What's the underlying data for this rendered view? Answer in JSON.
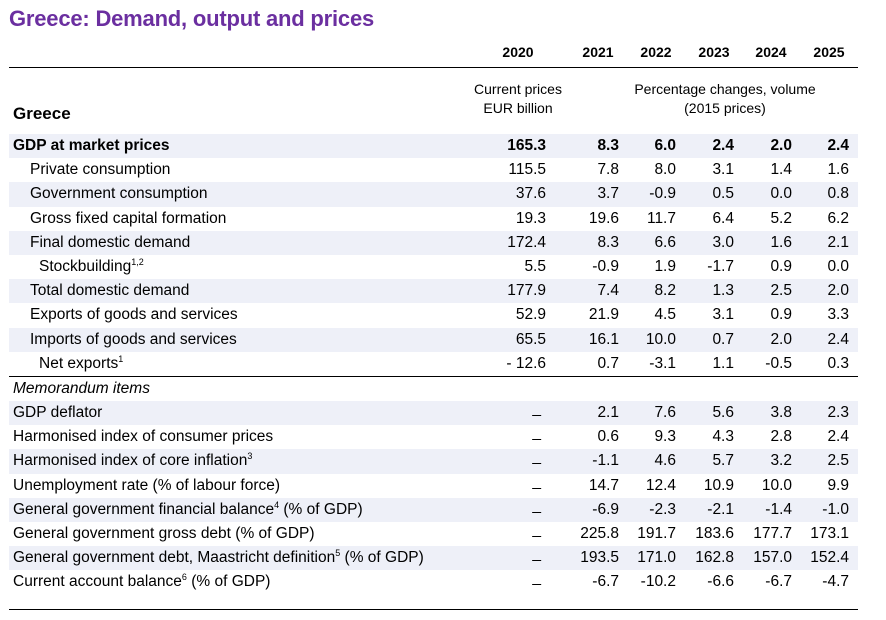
{
  "title": "Greece: Demand, output and prices",
  "header": {
    "years": [
      "2020",
      "2021",
      "2022",
      "2023",
      "2024",
      "2025"
    ],
    "col0_sub_line1": "Current prices",
    "col0_sub_line2": "EUR billion",
    "rest_sub_line1": "Percentage changes, volume",
    "rest_sub_line2": "(2015 prices)",
    "country": "Greece"
  },
  "rows": [
    {
      "label": "GDP at market prices",
      "values": [
        "165.3",
        "8.3",
        "6.0",
        "2.4",
        "2.0",
        "2.4"
      ]
    },
    {
      "label": "Private consumption",
      "values": [
        "115.5",
        "7.8",
        "8.0",
        "3.1",
        "1.4",
        "1.6"
      ]
    },
    {
      "label": "Government consumption",
      "values": [
        "37.6",
        "3.7",
        "-0.9",
        "0.5",
        "0.0",
        "0.8"
      ]
    },
    {
      "label": "Gross fixed capital formation",
      "values": [
        "19.3",
        "19.6",
        "11.7",
        "6.4",
        "5.2",
        "6.2"
      ]
    },
    {
      "label": "Final domestic demand",
      "values": [
        "172.4",
        "8.3",
        "6.6",
        "3.0",
        "1.6",
        "2.1"
      ]
    },
    {
      "label": "Stockbuilding",
      "sup": "1,2",
      "values": [
        "5.5",
        "-0.9",
        "1.9",
        "-1.7",
        "0.9",
        "0.0"
      ]
    },
    {
      "label": "Total domestic demand",
      "values": [
        "177.9",
        "7.4",
        "8.2",
        "1.3",
        "2.5",
        "2.0"
      ]
    },
    {
      "label": "Exports of goods and services",
      "values": [
        "52.9",
        "21.9",
        "4.5",
        "3.1",
        "0.9",
        "3.3"
      ]
    },
    {
      "label": "Imports of goods and services",
      "values": [
        "65.5",
        "16.1",
        "10.0",
        "0.7",
        "2.0",
        "2.4"
      ]
    },
    {
      "label": "Net exports",
      "sup": "1",
      "values": [
        "- 12.6",
        "0.7",
        "-3.1",
        "1.1",
        "-0.5",
        "0.3"
      ]
    },
    {
      "label": "Memorandum items"
    },
    {
      "label": "GDP deflator",
      "dash": "_",
      "values": [
        "",
        "2.1",
        "7.6",
        "5.6",
        "3.8",
        "2.3"
      ]
    },
    {
      "label": "Harmonised index of consumer prices",
      "dash": "_",
      "values": [
        "",
        "0.6",
        "9.3",
        "4.3",
        "2.8",
        "2.4"
      ]
    },
    {
      "label": "Harmonised index of core inflation",
      "sup": "3",
      "dash": "_",
      "values": [
        "",
        "-1.1",
        "4.6",
        "5.7",
        "3.2",
        "2.5"
      ]
    },
    {
      "label": "Unemployment rate (% of labour force)",
      "dash": "_",
      "values": [
        "",
        "14.7",
        "12.4",
        "10.9",
        "10.0",
        "9.9"
      ]
    },
    {
      "label": "General government financial balance",
      "sup": "4",
      "suffix": " (% of GDP)",
      "dash": "_",
      "values": [
        "",
        "-6.9",
        "-2.3",
        "-2.1",
        "-1.4",
        "-1.0"
      ]
    },
    {
      "label": "General government gross debt (% of GDP)",
      "dash": "_",
      "values": [
        "",
        "225.8",
        "191.7",
        "183.6",
        "177.7",
        "173.1"
      ]
    },
    {
      "label": "General government debt, Maastricht definition",
      "sup": "5",
      "suffix": " (% of GDP)",
      "dash": "_",
      "values": [
        "",
        "193.5",
        "171.0",
        "162.8",
        "157.0",
        "152.4"
      ]
    },
    {
      "label": "Current account balance",
      "sup": "6",
      "suffix": " (% of GDP)",
      "dash": "_",
      "values": [
        "",
        "-6.7",
        "-10.2",
        "-6.6",
        "-6.7",
        "-4.7"
      ]
    }
  ]
}
